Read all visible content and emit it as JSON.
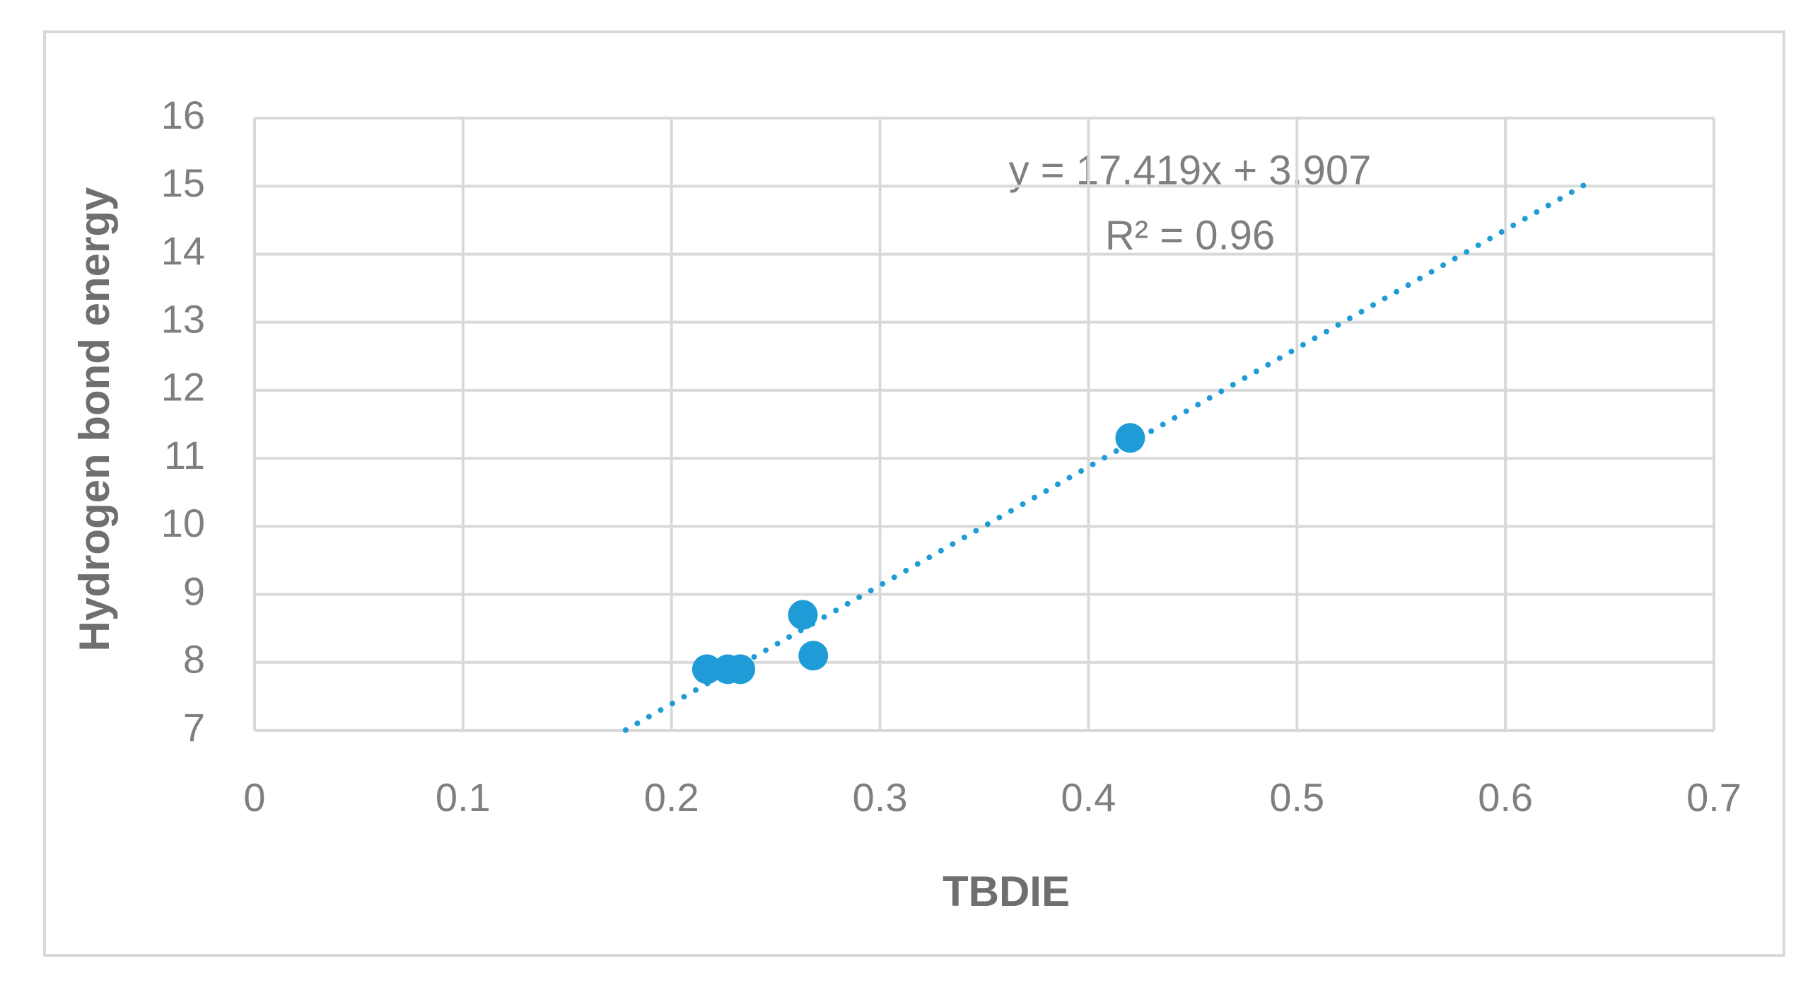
{
  "chart_data": {
    "type": "scatter",
    "x_label": "TBDIE",
    "y_label": "Hydrogen bond energy",
    "series": [
      {
        "name": "Hydrogen bond energy",
        "color": "#1f9bd7",
        "x": [
          0.217,
          0.227,
          0.233,
          0.263,
          0.268,
          0.42
        ],
        "values": [
          7.9,
          7.9,
          7.9,
          8.7,
          8.1,
          11.3
        ]
      }
    ],
    "trendline": {
      "slope": 17.419,
      "intercept": 3.907,
      "x": [
        0.178,
        0.64
      ],
      "color": "#1f9bd7",
      "equation": "y = 17.419x + 3.907",
      "r_squared": "R² = 0.96"
    },
    "xlim": [
      0,
      0.7
    ],
    "xticks": [
      0,
      0.1,
      0.2,
      0.3,
      0.4,
      0.5,
      0.6,
      0.7
    ],
    "ylim": [
      7,
      16
    ],
    "yticks": [
      7,
      8,
      9,
      10,
      11,
      12,
      13,
      14,
      15,
      16
    ],
    "grid": true
  }
}
